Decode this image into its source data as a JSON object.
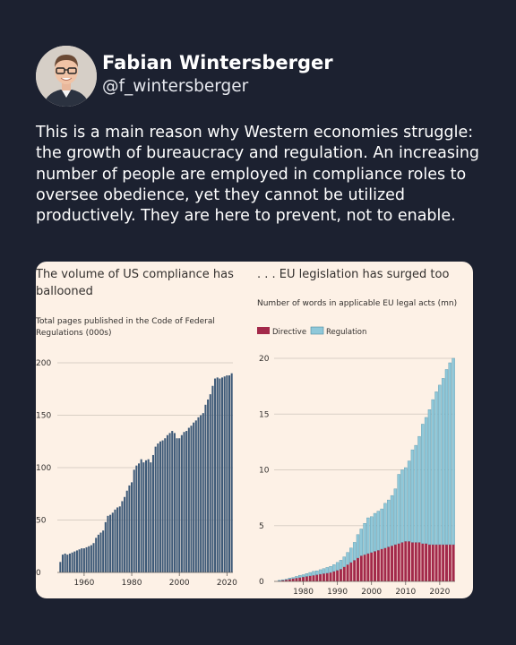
{
  "author": {
    "name": "Fabian Wintersberger",
    "handle": "@f_wintersberger"
  },
  "tweet": {
    "text": "This is a main reason why Western economies struggle: the growth of bureaucracy and regulation. An increasing number of people are employed in compliance roles to oversee obedience, yet they cannot be utilized productively. They are here to prevent, not to enable."
  },
  "colors": {
    "background": "#1c2130",
    "card": "#fdf1e6",
    "us_bar": "#3e5a78",
    "directive": "#a3294a",
    "regulation": "#8fc8d9"
  },
  "chart_data": [
    {
      "type": "bar",
      "title_lines": [
        "The volume of US compliance has",
        "ballooned"
      ],
      "subtitle_lines": [
        "Total pages published in the Code of Federal",
        "Regulations (000s)"
      ],
      "ylim": [
        0,
        200
      ],
      "yticks": [
        0,
        50,
        100,
        150,
        200
      ],
      "xticks": [
        1960,
        1980,
        2000,
        2020
      ],
      "grid": "horizontal",
      "x": [
        1950,
        1951,
        1952,
        1953,
        1954,
        1955,
        1956,
        1957,
        1958,
        1959,
        1960,
        1961,
        1962,
        1963,
        1964,
        1965,
        1966,
        1967,
        1968,
        1969,
        1970,
        1971,
        1972,
        1973,
        1974,
        1975,
        1976,
        1977,
        1978,
        1979,
        1980,
        1981,
        1982,
        1983,
        1984,
        1985,
        1986,
        1987,
        1988,
        1989,
        1990,
        1991,
        1992,
        1993,
        1994,
        1995,
        1996,
        1997,
        1998,
        1999,
        2000,
        2001,
        2002,
        2003,
        2004,
        2005,
        2006,
        2007,
        2008,
        2009,
        2010,
        2011,
        2012,
        2013,
        2014,
        2015,
        2016,
        2017,
        2018,
        2019,
        2020,
        2021,
        2022
      ],
      "values": [
        10,
        17,
        18,
        17,
        18,
        19,
        20,
        21,
        22,
        23,
        23,
        24,
        25,
        26,
        28,
        33,
        36,
        38,
        40,
        48,
        54,
        55,
        57,
        60,
        62,
        63,
        68,
        72,
        78,
        83,
        86,
        98,
        102,
        104,
        108,
        105,
        107,
        108,
        105,
        112,
        120,
        123,
        125,
        126,
        128,
        131,
        133,
        135,
        133,
        128,
        128,
        131,
        134,
        135,
        138,
        140,
        143,
        145,
        148,
        150,
        152,
        160,
        165,
        170,
        178,
        185,
        186,
        185,
        186,
        187,
        188,
        188,
        190
      ]
    },
    {
      "type": "stacked_bar",
      "title": ". . . EU legislation has surged too",
      "subtitle": "Number of words in applicable EU legal acts (mn)",
      "legend": [
        "Directive",
        "Regulation"
      ],
      "legend_position": "top-left",
      "ylim": [
        0,
        20
      ],
      "yticks": [
        0,
        5,
        10,
        15,
        20
      ],
      "xticks": [
        1980,
        1990,
        2000,
        2010,
        2020
      ],
      "grid": "horizontal",
      "x": [
        1973,
        1974,
        1975,
        1976,
        1977,
        1978,
        1979,
        1980,
        1981,
        1982,
        1983,
        1984,
        1985,
        1986,
        1987,
        1988,
        1989,
        1990,
        1991,
        1992,
        1993,
        1994,
        1995,
        1996,
        1997,
        1998,
        1999,
        2000,
        2001,
        2002,
        2003,
        2004,
        2005,
        2006,
        2007,
        2008,
        2009,
        2010,
        2011,
        2012,
        2013,
        2014,
        2015,
        2016,
        2017,
        2018,
        2019,
        2020,
        2021,
        2022,
        2023,
        2024
      ],
      "series": [
        {
          "name": "Directive",
          "values": [
            0.05,
            0.1,
            0.15,
            0.2,
            0.25,
            0.3,
            0.35,
            0.4,
            0.45,
            0.5,
            0.55,
            0.6,
            0.65,
            0.7,
            0.75,
            0.8,
            0.9,
            1.0,
            1.1,
            1.3,
            1.5,
            1.7,
            1.9,
            2.1,
            2.3,
            2.4,
            2.5,
            2.6,
            2.7,
            2.8,
            2.9,
            3.0,
            3.1,
            3.2,
            3.3,
            3.4,
            3.5,
            3.6,
            3.6,
            3.5,
            3.5,
            3.5,
            3.4,
            3.4,
            3.3,
            3.3,
            3.3,
            3.3,
            3.3,
            3.3,
            3.3,
            3.3
          ]
        },
        {
          "name": "Regulation",
          "values": [
            0.05,
            0.05,
            0.05,
            0.1,
            0.1,
            0.15,
            0.2,
            0.2,
            0.25,
            0.3,
            0.35,
            0.35,
            0.4,
            0.45,
            0.5,
            0.55,
            0.6,
            0.7,
            0.8,
            0.9,
            1.1,
            1.3,
            1.6,
            2.1,
            2.4,
            2.8,
            3.2,
            3.2,
            3.4,
            3.5,
            3.6,
            4.0,
            4.2,
            4.5,
            5.0,
            6.2,
            6.5,
            6.6,
            7.2,
            8.3,
            8.7,
            9.5,
            10.7,
            11.3,
            12.1,
            13.0,
            13.7,
            14.3,
            14.9,
            15.7,
            16.3,
            16.7
          ]
        }
      ]
    }
  ]
}
